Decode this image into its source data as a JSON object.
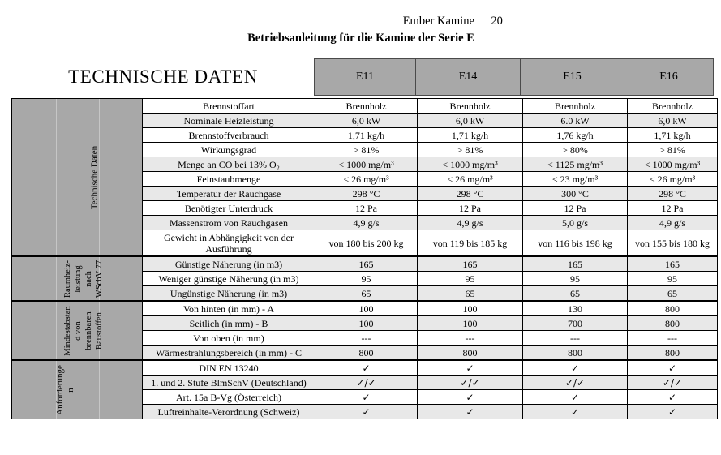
{
  "page_header": {
    "brand": "Ember Kamine",
    "page_number": "20",
    "subtitle": "Betriebsanleitung für die Kamine der Serie E"
  },
  "table": {
    "title": "TECHNISCHE DATEN",
    "columns": [
      "E11",
      "E14",
      "E15",
      "E16"
    ],
    "colors": {
      "header_gray": "#a8a8a8",
      "stripe": "#e8e8e8",
      "border": "#000000"
    },
    "sections": [
      {
        "id": "technische-daten",
        "group_label": "Technische Daten",
        "rows": [
          {
            "label": "Brennstoffart",
            "shaded": false,
            "values": [
              "Brennholz",
              "Brennholz",
              "Brennholz",
              "Brennholz"
            ]
          },
          {
            "label": "Nominale Heizleistung",
            "shaded": true,
            "values": [
              "6,0 kW",
              "6,0 kW",
              "6.0 kW",
              "6,0 kW"
            ]
          },
          {
            "label": "Brennstoffverbrauch",
            "shaded": false,
            "values": [
              "1,71 kg/h",
              "1,71 kg/h",
              "1,76 kg/h",
              "1,71 kg/h"
            ]
          },
          {
            "label": "Wirkungsgrad",
            "shaded": false,
            "values": [
              "> 81%",
              "> 81%",
              "> 80%",
              "> 81%"
            ]
          },
          {
            "label": "Menge an CO bei 13% O₂",
            "shaded": true,
            "values": [
              "< 1000 mg/m³",
              "< 1000 mg/m³",
              "< 1125 mg/m³",
              "< 1000 mg/m³"
            ]
          },
          {
            "label": "Feinstaubmenge",
            "shaded": false,
            "values": [
              "< 26 mg/m³",
              "< 26 mg/m³",
              "< 23 mg/m³",
              "< 26 mg/m³"
            ]
          },
          {
            "label": "Temperatur der Rauchgase",
            "shaded": true,
            "values": [
              "298 °C",
              "298 °C",
              "300 °C",
              "298 °C"
            ]
          },
          {
            "label": "Benötigter Unterdruck",
            "shaded": false,
            "values": [
              "12 Pa",
              "12 Pa",
              "12 Pa",
              "12 Pa"
            ]
          },
          {
            "label": "Massenstrom von Rauchgasen",
            "shaded": true,
            "values": [
              "4,9 g/s",
              "4,9 g/s",
              "5,0 g/s",
              "4,9 g/s"
            ]
          },
          {
            "label": "Gewicht in Abhängigkeit von der Ausführung",
            "shaded": false,
            "values": [
              "von 180 bis 200 kg",
              "von 119 bis 185 kg",
              "von 116 bis 198 kg",
              "von 155 bis 180 kg"
            ]
          }
        ]
      },
      {
        "id": "raumheizleistung-nach-wschv-77",
        "group_label": "Raumheiz-\nleistung\nnach\nWSchV 77",
        "rows": [
          {
            "label": "Günstige Näherung (in m3)",
            "shaded": true,
            "values": [
              "165",
              "165",
              "165",
              "165"
            ]
          },
          {
            "label": "Weniger günstige Näherung (in m3)",
            "shaded": false,
            "values": [
              "95",
              "95",
              "95",
              "95"
            ]
          },
          {
            "label": "Ungünstige Näherung (in m3)",
            "shaded": true,
            "values": [
              "65",
              "65",
              "65",
              "65"
            ]
          }
        ]
      },
      {
        "id": "mindestabstand-von-brennbaren-baustoffen",
        "group_label": "Mindestabstan\nd von\nbrennbaren\nBaustoffen",
        "rows": [
          {
            "label": "Von hinten (in mm) - A",
            "shaded": false,
            "values": [
              "100",
              "100",
              "130",
              "800"
            ]
          },
          {
            "label": "Seitlich (in mm) - B",
            "shaded": true,
            "values": [
              "100",
              "100",
              "700",
              "800"
            ]
          },
          {
            "label": "Von oben (in mm)",
            "shaded": false,
            "values": [
              "---",
              "---",
              "---",
              "---"
            ]
          },
          {
            "label": "Wärmestrahlungsbereich (in mm) - C",
            "shaded": true,
            "values": [
              "800",
              "800",
              "800",
              "800"
            ]
          }
        ]
      },
      {
        "id": "anforderungen",
        "group_label": "Anforderunge\nn",
        "rows": [
          {
            "label": "DIN EN 13240",
            "shaded": false,
            "values": [
              "✓",
              "✓",
              "✓",
              "✓"
            ]
          },
          {
            "label": "1. und 2. Stufe BlmSchV (Deutschland)",
            "shaded": true,
            "values": [
              "✓/✓",
              "✓/✓",
              "✓/✓",
              "✓/✓"
            ]
          },
          {
            "label": "Art. 15a B-Vg (Österreich)",
            "shaded": false,
            "values": [
              "✓",
              "✓",
              "✓",
              "✓"
            ]
          },
          {
            "label": "Luftreinhalte-Verordnung (Schweiz)",
            "shaded": true,
            "values": [
              "✓",
              "✓",
              "✓",
              "✓"
            ]
          }
        ]
      }
    ]
  }
}
